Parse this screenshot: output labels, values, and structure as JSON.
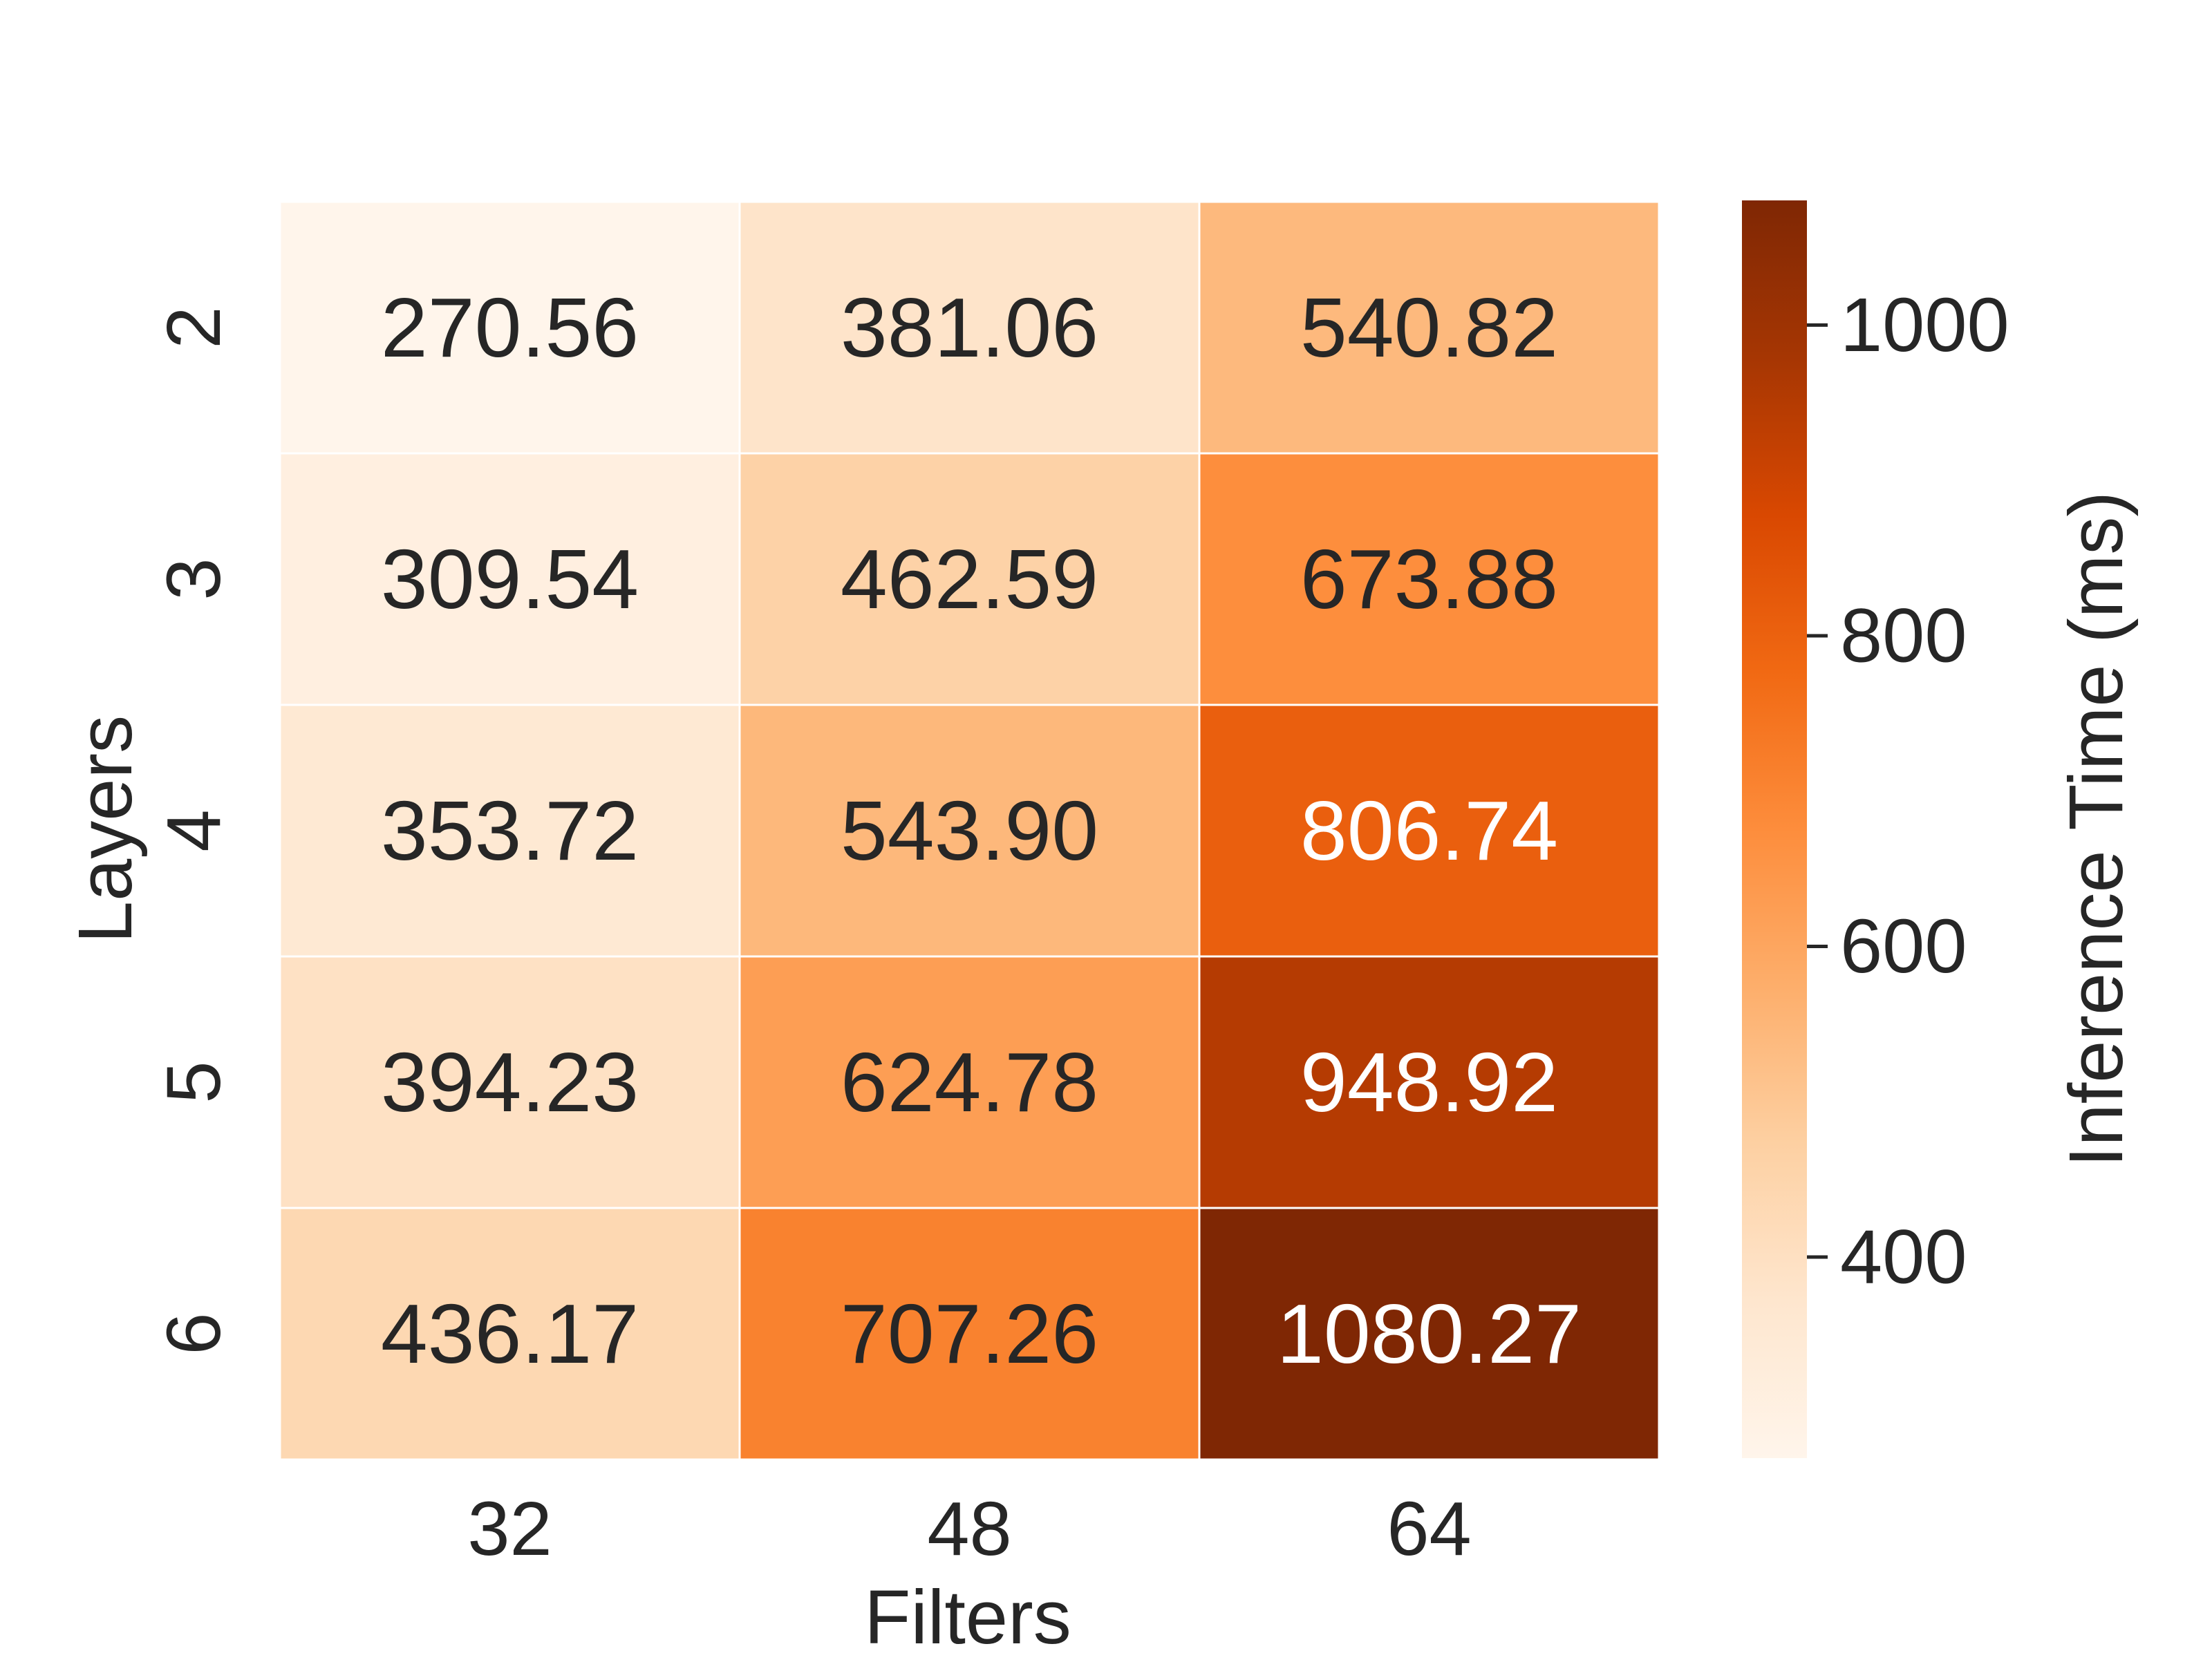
{
  "chart_data": {
    "type": "heatmap",
    "x_categories": [
      "32",
      "48",
      "64"
    ],
    "y_categories": [
      "2",
      "3",
      "4",
      "5",
      "6"
    ],
    "values": [
      [
        270.56,
        381.06,
        540.82
      ],
      [
        309.54,
        462.59,
        673.88
      ],
      [
        353.72,
        543.9,
        806.74
      ],
      [
        394.23,
        624.78,
        948.92
      ],
      [
        436.17,
        707.26,
        1080.27
      ]
    ],
    "xlabel": "Filters",
    "ylabel": "Layers",
    "colorbar": {
      "label": "Inference Time (ms)",
      "min": 270.56,
      "max": 1080.27,
      "ticks": [
        400,
        600,
        800,
        1000
      ],
      "colormap": "Oranges",
      "gradient_colors": [
        "#fff5eb",
        "#fee6ce",
        "#fdd0a2",
        "#fdae6b",
        "#fd8d3c",
        "#f16913",
        "#d94801",
        "#a63603",
        "#7f2704"
      ]
    },
    "cell_text_colors": {
      "light": "#262626",
      "dark": "#ffffff"
    },
    "grid_line_color": "#ffffff",
    "value_format_decimals": 2
  }
}
